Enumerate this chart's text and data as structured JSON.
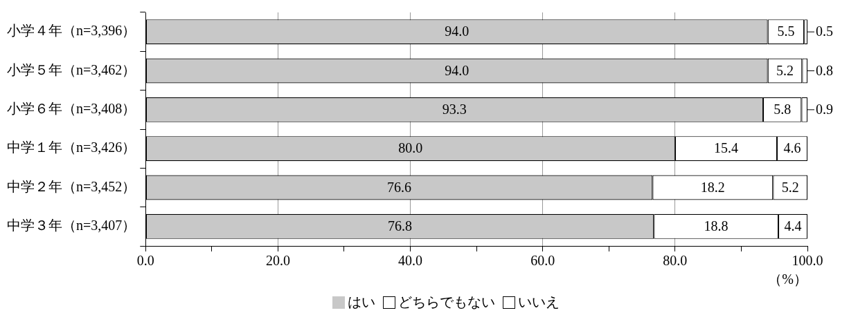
{
  "chart_data": {
    "type": "bar",
    "orientation": "horizontal",
    "stacked": true,
    "xlabel": "（%）",
    "categories": [
      "小学４年（n=3,396）",
      "小学５年（n=3,462）",
      "小学６年（n=3,408）",
      "中学１年（n=3,426）",
      "中学２年（n=3,452）",
      "中学３年（n=3,407）"
    ],
    "series": [
      {
        "name": "はい",
        "color": "#c8c8c8",
        "values": [
          94.0,
          94.0,
          93.3,
          80.0,
          76.6,
          76.8
        ],
        "value_labels": [
          "94.0",
          "94.0",
          "93.3",
          "80.0",
          "76.6",
          "76.8"
        ]
      },
      {
        "name": "どちらでもない",
        "color": "#ffffff",
        "values": [
          5.5,
          5.2,
          5.8,
          15.4,
          18.2,
          18.8
        ],
        "value_labels": [
          "5.5",
          "5.2",
          "5.8",
          "15.4",
          "18.2",
          "18.8"
        ]
      },
      {
        "name": "いいえ",
        "color": "#ffffff",
        "values": [
          0.5,
          0.8,
          0.9,
          4.6,
          5.2,
          4.4
        ],
        "value_labels": [
          "0.5",
          "0.8",
          "0.9",
          "4.6",
          "5.2",
          "4.4"
        ]
      }
    ],
    "xlim": [
      0,
      100
    ],
    "xticks": [
      {
        "value": 0,
        "label": "0.0"
      },
      {
        "value": 10,
        "label": null
      },
      {
        "value": 20,
        "label": "20.0"
      },
      {
        "value": 30,
        "label": null
      },
      {
        "value": 40,
        "label": "40.0"
      },
      {
        "value": 50,
        "label": null
      },
      {
        "value": 60,
        "label": "60.0"
      },
      {
        "value": 70,
        "label": null
      },
      {
        "value": 80,
        "label": "80.0"
      },
      {
        "value": 90,
        "label": null
      },
      {
        "value": 100,
        "label": "100.0"
      }
    ],
    "grid": "x",
    "legend": "bottom"
  }
}
